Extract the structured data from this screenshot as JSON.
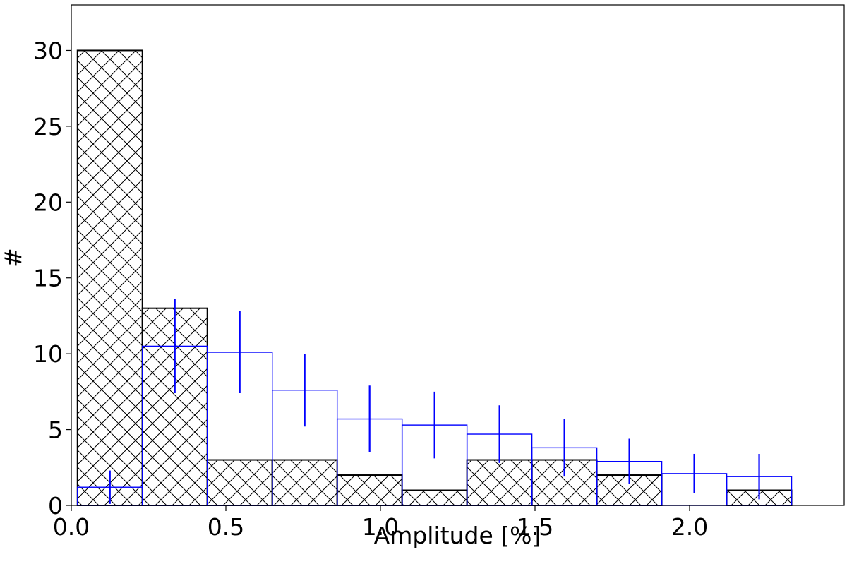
{
  "chart_data": {
    "type": "bar",
    "xlabel": "Amplitude [%]",
    "ylabel": "#",
    "xlim": [
      0.0,
      2.5
    ],
    "ylim": [
      0,
      33
    ],
    "grid": false,
    "legend": "none",
    "xticks": [
      "0.0",
      "0.5",
      "1.0",
      "1.5",
      "2.0"
    ],
    "yticks": [
      "0",
      "5",
      "10",
      "15",
      "20",
      "25",
      "30"
    ],
    "bin_edges": [
      0.02,
      0.23,
      0.44,
      0.65,
      0.86,
      1.07,
      1.28,
      1.49,
      1.7,
      1.91,
      2.12,
      2.33
    ],
    "series": [
      {
        "style": "hatched",
        "color": "#000000",
        "values": [
          30,
          13,
          3,
          3,
          2,
          1,
          3,
          3,
          2,
          0,
          1
        ]
      },
      {
        "style": "step-with-errorbars",
        "color": "#0000ff",
        "values": [
          1.2,
          10.5,
          10.1,
          7.6,
          5.7,
          5.3,
          4.7,
          3.8,
          2.9,
          2.1,
          1.9
        ],
        "errors": [
          1.1,
          3.1,
          2.7,
          2.4,
          2.2,
          2.2,
          1.9,
          1.9,
          1.5,
          1.3,
          1.5
        ]
      }
    ]
  }
}
